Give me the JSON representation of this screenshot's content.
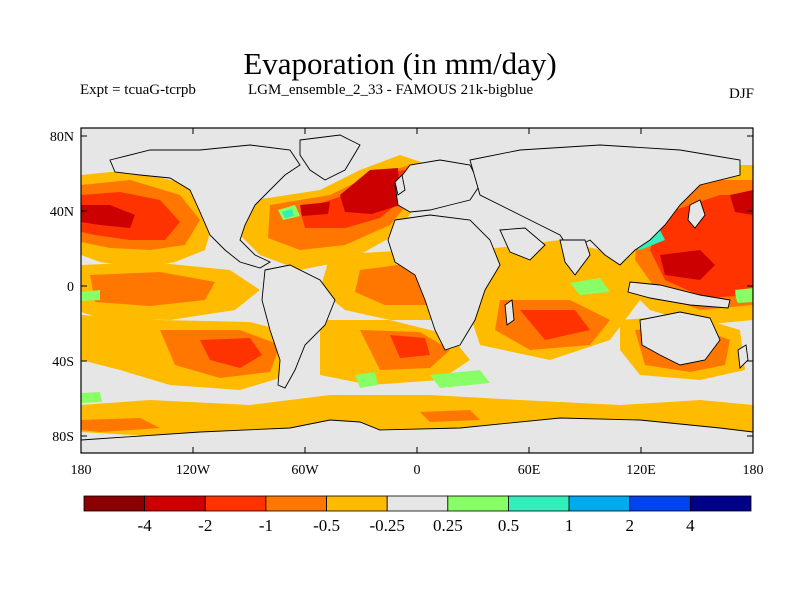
{
  "title": "Evaporation (in mm/day)",
  "subtitle_left": "Expt = tcuaG-tcrpb",
  "subtitle_mid": "LGM_ensemble_2_33 - FAMOUS 21k-bigblue",
  "subtitle_right": "DJF",
  "lat_ticks": [
    "80N",
    "40N",
    "0",
    "40S",
    "80S"
  ],
  "lon_ticks": [
    "180",
    "120W",
    "60W",
    "0",
    "60E",
    "120E",
    "180"
  ],
  "colorbar": {
    "colors": [
      "#8b0000",
      "#cc0000",
      "#ff3300",
      "#ff7700",
      "#ffbb00",
      "#e6e6e6",
      "#88ff66",
      "#33eebb",
      "#00aaee",
      "#0044ee",
      "#000088"
    ],
    "labels": [
      "-4",
      "-2",
      "-1",
      "-0.5",
      "-0.25",
      "0.25",
      "0.5",
      "1",
      "2",
      "4"
    ]
  },
  "colors": {
    "ocean_bg": "#e6e6e6",
    "land_outline": "#000000"
  }
}
